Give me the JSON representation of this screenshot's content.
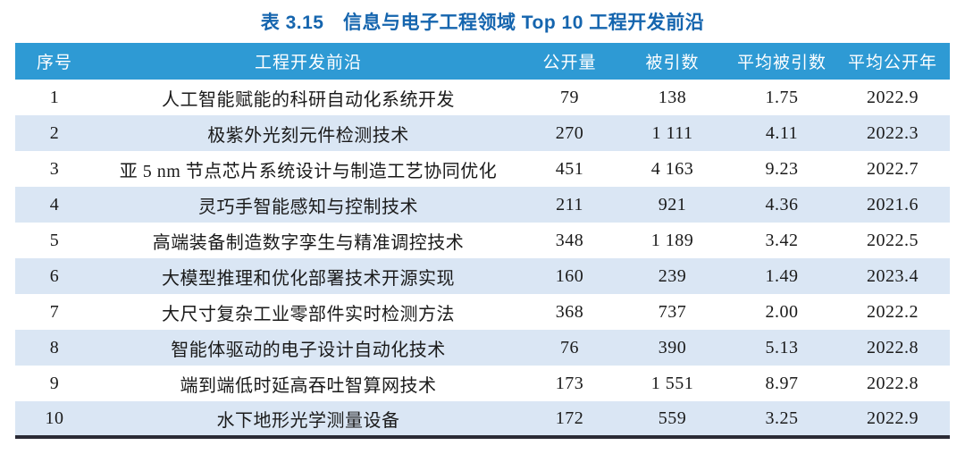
{
  "title": "表 3.15　信息与电子工程领域 Top 10 工程开发前沿",
  "colors": {
    "header_bg": "#2E9AD4",
    "row_alt_bg": "#DAE6F4",
    "title_color": "#1565AE",
    "bottom_border": "#2A2A35",
    "cell_text": "#1A1A1A"
  },
  "table": {
    "col_keys": [
      "rank",
      "front",
      "publications",
      "citations",
      "avg-citations",
      "avg-year"
    ],
    "headers": [
      "序号",
      "工程开发前沿",
      "公开量",
      "被引数",
      "平均被引数",
      "平均公开年"
    ],
    "rows": [
      [
        "1",
        "人工智能赋能的科研自动化系统开发",
        "79",
        "138",
        "1.75",
        "2022.9"
      ],
      [
        "2",
        "极紫外光刻元件检测技术",
        "270",
        "1 111",
        "4.11",
        "2022.3"
      ],
      [
        "3",
        "亚 5 nm 节点芯片系统设计与制造工艺协同优化",
        "451",
        "4 163",
        "9.23",
        "2022.7"
      ],
      [
        "4",
        "灵巧手智能感知与控制技术",
        "211",
        "921",
        "4.36",
        "2021.6"
      ],
      [
        "5",
        "高端装备制造数字孪生与精准调控技术",
        "348",
        "1 189",
        "3.42",
        "2022.5"
      ],
      [
        "6",
        "大模型推理和优化部署技术开源实现",
        "160",
        "239",
        "1.49",
        "2023.4"
      ],
      [
        "7",
        "大尺寸复杂工业零部件实时检测方法",
        "368",
        "737",
        "2.00",
        "2022.2"
      ],
      [
        "8",
        "智能体驱动的电子设计自动化技术",
        "76",
        "390",
        "5.13",
        "2022.8"
      ],
      [
        "9",
        "端到端低时延高吞吐智算网技术",
        "173",
        "1 551",
        "8.97",
        "2022.8"
      ],
      [
        "10",
        "水下地形光学测量设备",
        "172",
        "559",
        "3.25",
        "2022.9"
      ]
    ]
  },
  "chart_data": {
    "type": "table",
    "title": "表 3.15　信息与电子工程领域 Top 10 工程开发前沿",
    "columns": [
      "序号",
      "工程开发前沿",
      "公开量",
      "被引数",
      "平均被引数",
      "平均公开年"
    ],
    "rows": [
      [
        1,
        "人工智能赋能的科研自动化系统开发",
        79,
        138,
        1.75,
        2022.9
      ],
      [
        2,
        "极紫外光刻元件检测技术",
        270,
        1111,
        4.11,
        2022.3
      ],
      [
        3,
        "亚 5 nm 节点芯片系统设计与制造工艺协同优化",
        451,
        4163,
        9.23,
        2022.7
      ],
      [
        4,
        "灵巧手智能感知与控制技术",
        211,
        921,
        4.36,
        2021.6
      ],
      [
        5,
        "高端装备制造数字孪生与精准调控技术",
        348,
        1189,
        3.42,
        2022.5
      ],
      [
        6,
        "大模型推理和优化部署技术开源实现",
        160,
        239,
        1.49,
        2023.4
      ],
      [
        7,
        "大尺寸复杂工业零部件实时检测方法",
        368,
        737,
        2.0,
        2022.2
      ],
      [
        8,
        "智能体驱动的电子设计自动化技术",
        76,
        390,
        5.13,
        2022.8
      ],
      [
        9,
        "端到端低时延高吞吐智算网技术",
        173,
        1551,
        8.97,
        2022.8
      ],
      [
        10,
        "水下地形光学测量设备",
        172,
        559,
        3.25,
        2022.9
      ]
    ]
  }
}
